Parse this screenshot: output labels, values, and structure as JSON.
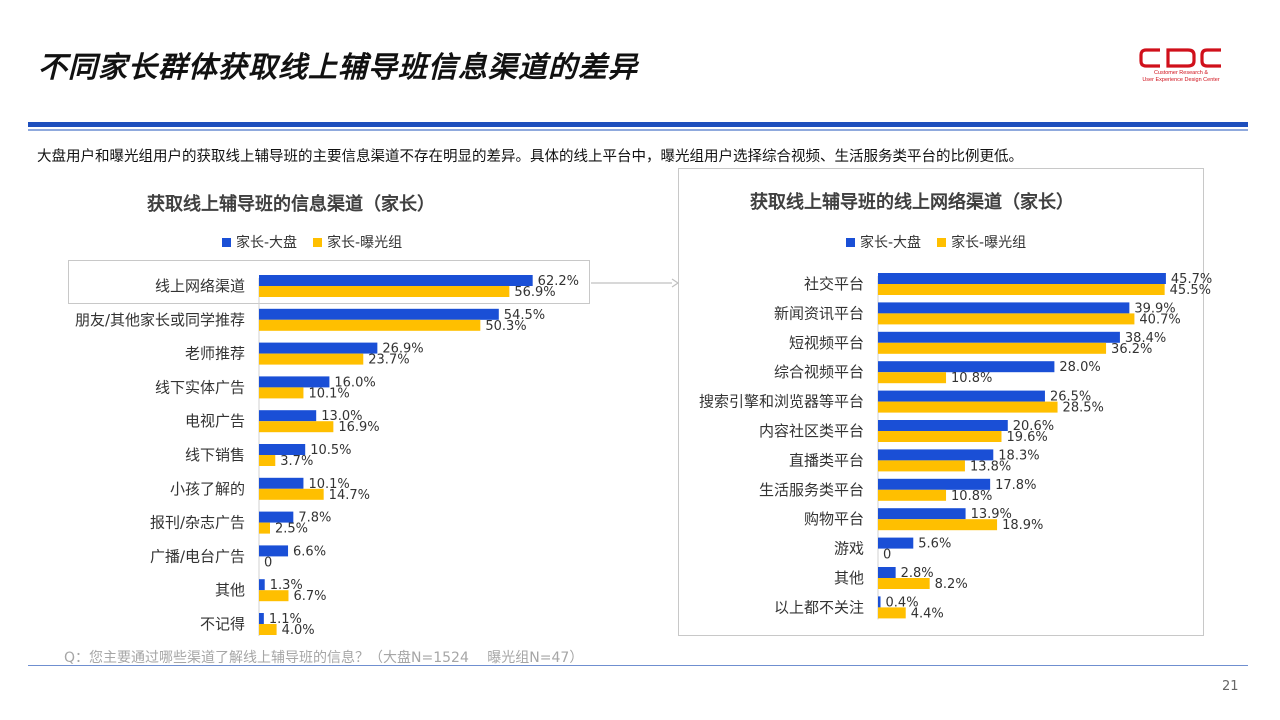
{
  "page": {
    "title": "不同家长群体获取线上辅导班信息渠道的差异",
    "summary": "大盘用户和曝光组用户的获取线上辅导班的主要信息渠道不存在明显的差异。具体的线上平台中，曝光组用户选择综合视频、生活服务类平台的比例更低。",
    "question": "Q：您主要通过哪些渠道了解线上辅导班的信息？（大盘N=1524　 曝光组N=47）",
    "page_number": "21",
    "logo": {
      "text_line1": "Customer Research &",
      "text_line2": "User Experience Design Center"
    }
  },
  "colors": {
    "series_blue": "#1a4fd6",
    "series_yellow": "#ffbf00",
    "accent_rule": "#1e4fbd",
    "logo_red": "#d0101b"
  },
  "chart_data": [
    {
      "type": "bar",
      "orientation": "horizontal",
      "title": "获取线上辅导班的信息渠道（家长）",
      "legend_position": "top",
      "categories": [
        "线上网络渠道",
        "朋友/其他家长或同学推荐",
        "老师推荐",
        "线下实体广告",
        "电视广告",
        "线下销售",
        "小孩了解的",
        "报刊/杂志广告",
        "广播/电台广告",
        "其他",
        "不记得"
      ],
      "series": [
        {
          "name": "家长-大盘",
          "values": [
            62.2,
            54.5,
            26.9,
            16.0,
            13.0,
            10.5,
            10.1,
            7.8,
            6.6,
            1.3,
            1.1
          ]
        },
        {
          "name": "家长-曝光组",
          "values": [
            56.9,
            50.3,
            23.7,
            10.1,
            16.9,
            3.7,
            14.7,
            2.5,
            0,
            6.7,
            4.0
          ]
        }
      ]
    },
    {
      "type": "bar",
      "orientation": "horizontal",
      "title": "获取线上辅导班的线上网络渠道（家长）",
      "legend_position": "top",
      "categories": [
        "社交平台",
        "新闻资讯平台",
        "短视频平台",
        "综合视频平台",
        "搜索引擎和浏览器等平台",
        "内容社区类平台",
        "直播类平台",
        "生活服务类平台",
        "购物平台",
        "游戏",
        "其他",
        "以上都不关注"
      ],
      "series": [
        {
          "name": "家长-大盘",
          "values": [
            45.7,
            39.9,
            38.4,
            28.0,
            26.5,
            20.6,
            18.3,
            17.8,
            13.9,
            5.6,
            2.8,
            0.4
          ]
        },
        {
          "name": "家长-曝光组",
          "values": [
            45.5,
            40.7,
            36.2,
            10.8,
            28.5,
            19.6,
            13.8,
            10.8,
            18.9,
            0,
            8.2,
            4.4
          ]
        }
      ]
    }
  ]
}
